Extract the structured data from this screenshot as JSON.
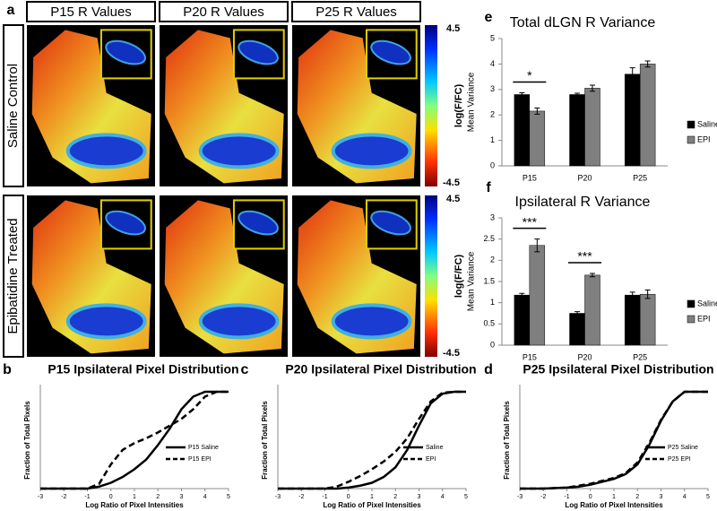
{
  "figure_a": {
    "panel": "a",
    "columns": [
      "P15 R Values",
      "P20 R Values",
      "P25 R Values"
    ],
    "rows": [
      "Saline Control",
      "Epibatidine Treated"
    ],
    "colorbar": {
      "label": "log(F/FC)",
      "ticks": [
        4.5,
        -4.5
      ]
    }
  },
  "chart_data": [
    {
      "type": "bar",
      "panel": "e",
      "title": "Total dLGN R Variance",
      "ylabel": "Mean Variance",
      "categories": [
        "P15",
        "P20",
        "P25"
      ],
      "series": [
        {
          "name": "Saline",
          "color": "#000000",
          "values": [
            2.8,
            2.8,
            3.6
          ],
          "errors": [
            0.07,
            0.05,
            0.25
          ]
        },
        {
          "name": "EPI",
          "color": "#7f7f7f",
          "values": [
            2.15,
            3.05,
            4.0
          ],
          "errors": [
            0.12,
            0.12,
            0.12
          ]
        }
      ],
      "ylim": [
        0,
        5
      ],
      "yticks": [
        0,
        1,
        2,
        3,
        4,
        5
      ],
      "legend": "right",
      "annotations": [
        {
          "text": "*",
          "category": "P15"
        }
      ]
    },
    {
      "type": "bar",
      "panel": "f",
      "title": "Ipsilateral R Variance",
      "ylabel": "Mean Variance",
      "categories": [
        "P15",
        "P20",
        "P25"
      ],
      "series": [
        {
          "name": "Saline",
          "color": "#000000",
          "values": [
            1.18,
            0.75,
            1.18
          ],
          "errors": [
            0.04,
            0.04,
            0.07
          ]
        },
        {
          "name": "EPI",
          "color": "#7f7f7f",
          "values": [
            2.35,
            1.65,
            1.2
          ],
          "errors": [
            0.15,
            0.04,
            0.1
          ]
        }
      ],
      "ylim": [
        0,
        3
      ],
      "yticks": [
        0,
        0.5,
        1,
        1.5,
        2,
        2.5,
        3
      ],
      "legend": "right",
      "annotations": [
        {
          "text": "***",
          "category": "P15"
        },
        {
          "text": "***",
          "category": "P20"
        }
      ]
    },
    {
      "type": "line",
      "panel": "b",
      "title": "P15 Ipsilateral Pixel Distribution",
      "xlabel": "Log Ratio of Pixel Intensities",
      "ylabel": "Fraction of Total Pixels",
      "x": [
        -3,
        -2,
        -1,
        -0.5,
        0,
        0.5,
        1,
        1.5,
        2,
        2.5,
        3,
        3.5,
        4,
        4.5,
        5
      ],
      "series": [
        {
          "name": "P15 Saline",
          "color": "#000000",
          "dash": false,
          "values": [
            0,
            0,
            0,
            0.02,
            0.06,
            0.12,
            0.2,
            0.3,
            0.45,
            0.62,
            0.82,
            0.95,
            1,
            1,
            1
          ]
        },
        {
          "name": "P15 EPI",
          "color": "#000000",
          "dash": true,
          "values": [
            0,
            0,
            0,
            0.05,
            0.25,
            0.4,
            0.47,
            0.52,
            0.58,
            0.65,
            0.72,
            0.82,
            0.95,
            1,
            1
          ]
        }
      ],
      "xlim": [
        -3,
        5
      ],
      "xticks": [
        -3,
        -2,
        -1,
        0,
        1,
        2,
        3,
        4,
        5
      ],
      "ylim": [
        0,
        1
      ],
      "legend": "center right"
    },
    {
      "type": "line",
      "panel": "c",
      "title": "P20 Ipsilateral Pixel Distribution",
      "xlabel": "Log Ratio of Pixel Intensities",
      "ylabel": "Fraction of Total Pixels",
      "x": [
        -3,
        -2,
        -1,
        -0.5,
        0,
        0.5,
        1,
        1.5,
        2,
        2.5,
        3,
        3.5,
        4,
        4.5,
        5
      ],
      "series": [
        {
          "name": "Saline",
          "color": "#000000",
          "dash": false,
          "values": [
            0,
            0,
            0,
            0,
            0.01,
            0.03,
            0.06,
            0.12,
            0.22,
            0.4,
            0.65,
            0.88,
            0.98,
            1,
            1
          ]
        },
        {
          "name": "EPI",
          "color": "#000000",
          "dash": true,
          "values": [
            0,
            0,
            0,
            0.02,
            0.07,
            0.13,
            0.2,
            0.28,
            0.38,
            0.52,
            0.72,
            0.9,
            0.99,
            1,
            1
          ]
        }
      ],
      "xlim": [
        -3,
        5
      ],
      "xticks": [
        -3,
        -2,
        -1,
        0,
        1,
        2,
        3,
        4,
        5
      ],
      "ylim": [
        0,
        1
      ],
      "legend": "center right"
    },
    {
      "type": "line",
      "panel": "d",
      "title": "P25 Ipsilateral Pixel Distribution",
      "xlabel": "Log Ratio of Pixel Intensities",
      "ylabel": "Fraction of Total Pixels",
      "x": [
        -3,
        -2,
        -1,
        -0.5,
        0,
        0.5,
        1,
        1.5,
        2,
        2.5,
        3,
        3.5,
        4,
        4.5,
        5
      ],
      "series": [
        {
          "name": "P25 Saline",
          "color": "#000000",
          "dash": false,
          "values": [
            0,
            0,
            0.01,
            0.02,
            0.04,
            0.07,
            0.1,
            0.15,
            0.25,
            0.45,
            0.7,
            0.9,
            1,
            1,
            1
          ]
        },
        {
          "name": "P25 EPI",
          "color": "#000000",
          "dash": true,
          "values": [
            0,
            0,
            0.01,
            0.03,
            0.05,
            0.08,
            0.11,
            0.16,
            0.27,
            0.47,
            0.71,
            0.9,
            1,
            1,
            1
          ]
        }
      ],
      "xlim": [
        -3,
        5
      ],
      "xticks": [
        -3,
        -2,
        -1,
        0,
        1,
        2,
        3,
        4,
        5
      ],
      "ylim": [
        0,
        1
      ],
      "legend": "center right"
    }
  ]
}
